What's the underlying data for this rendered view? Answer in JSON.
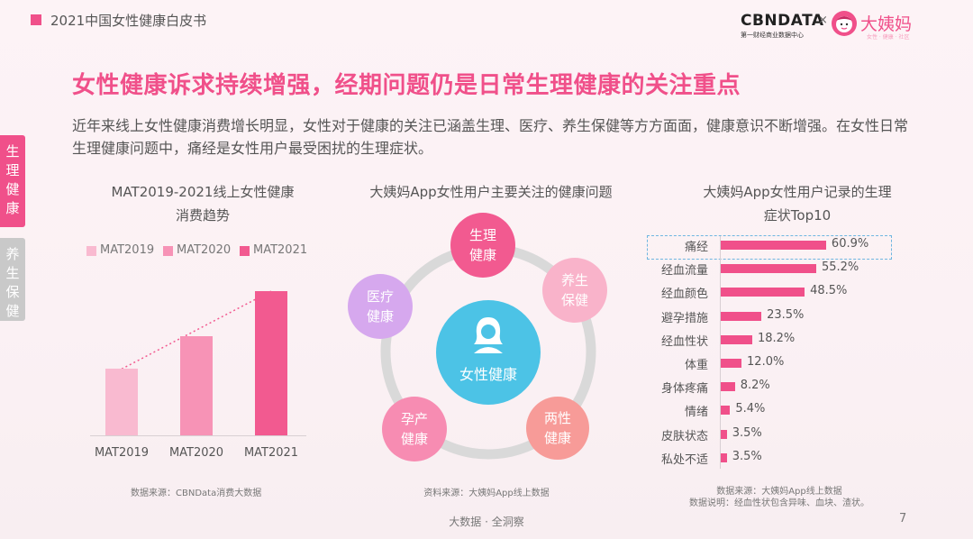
{
  "header": {
    "doc_title": "2021中国女性健康白皮书",
    "brand_cbn": "CBNDATA",
    "brand_cbn_sub": "第一财经商业数据中心",
    "brand_x": "×",
    "brand_dym": "大姨妈",
    "brand_dym_sub": "女性 · 健康 · 社区"
  },
  "main_title": "女性健康诉求持续增强，经期问题仍是日常生理健康的关注重点",
  "intro": "近年来线上女性健康消费增长明显，女性对于健康的关注已涵盖生理、医疗、养生保健等方方面面，健康意识不断增强。在女性日常生理健康问题中，痛经是女性用户最受困扰的生理症状。",
  "side_tabs": [
    {
      "label": "生理健康",
      "active": true
    },
    {
      "label": "养生保健",
      "active": false
    }
  ],
  "chart_data": [
    {
      "type": "bar",
      "title": "MAT2019-2021线上女性健康消费趋势",
      "title_lines": [
        "MAT2019-2021线上女性健康",
        "消费趋势"
      ],
      "categories": [
        "MAT2019",
        "MAT2020",
        "MAT2021"
      ],
      "legend": [
        "MAT2019",
        "MAT2020",
        "MAT2021"
      ],
      "values": [
        0.46,
        0.69,
        1.0
      ],
      "colors": [
        "#f9bad0",
        "#f793b6",
        "#f25a90"
      ],
      "trend_line": true,
      "legend_placement": "top",
      "source": "数据来源：CBNData消费大数据"
    },
    {
      "type": "diagram",
      "title": "大姨妈App女性用户主要关注的健康问题",
      "center": "女性健康",
      "nodes": [
        {
          "label": "生理健康",
          "lines": [
            "生理",
            "健康"
          ],
          "color": "#f25a90"
        },
        {
          "label": "养生保健",
          "lines": [
            "养生",
            "保健"
          ],
          "color": "#f9b3ca"
        },
        {
          "label": "两性健康",
          "lines": [
            "两性",
            "健康"
          ],
          "color": "#f79b98"
        },
        {
          "label": "孕产健康",
          "lines": [
            "孕产",
            "健康"
          ],
          "color": "#f78cb2"
        },
        {
          "label": "医疗健康",
          "lines": [
            "医疗",
            "健康"
          ],
          "color": "#d6a8ee"
        }
      ],
      "source": "资料来源：大姨妈App线上数据"
    },
    {
      "type": "bar",
      "orientation": "horizontal",
      "title": "大姨妈App女性用户记录的生理症状Top10",
      "title_lines": [
        "大姨妈App女性用户记录的生理",
        "症状Top10"
      ],
      "categories": [
        "痛经",
        "经血流量",
        "经血颜色",
        "避孕措施",
        "经血性状",
        "体重",
        "身体疼痛",
        "情绪",
        "皮肤状态",
        "私处不适"
      ],
      "values": [
        60.9,
        55.2,
        48.5,
        23.5,
        18.2,
        12.0,
        8.2,
        5.4,
        3.5,
        3.5
      ],
      "value_labels": [
        "60.9%",
        "55.2%",
        "48.5%",
        "23.5%",
        "18.2%",
        "12.0%",
        "8.2%",
        "5.4%",
        "3.5%",
        "3.5%"
      ],
      "unit": "%",
      "highlight": "痛经",
      "color": "#f0508a",
      "source": "数据来源：大姨妈App线上数据",
      "note": "数据说明：经血性状包含异味、血块、渣状。"
    }
  ],
  "footer": "大数据 · 全洞察",
  "page_number": "7"
}
